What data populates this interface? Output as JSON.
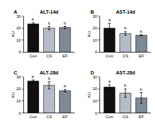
{
  "chart_data": [
    {
      "type": "bar",
      "panel": "A",
      "title": "ALT-14d",
      "y_label": "KU",
      "categories": [
        "Con",
        "CS",
        "EF"
      ],
      "values": [
        23.5,
        20,
        20.5
      ],
      "errors": [
        1,
        1.5,
        1
      ],
      "letters": [
        "a",
        "b",
        "b"
      ],
      "colors": [
        "#111111",
        "#b4bcc8",
        "#7f8a99"
      ],
      "ylim": [
        0,
        30
      ],
      "yticks": [
        0,
        10,
        20,
        30
      ],
      "grid": false
    },
    {
      "type": "bar",
      "panel": "B",
      "title": "AST-14d",
      "y_label": "KU",
      "categories": [
        "Con",
        "CS",
        "EF"
      ],
      "values": [
        20,
        15.5,
        14
      ],
      "errors": [
        4,
        1.5,
        0.5
      ],
      "letters": [
        "a",
        "b",
        "b"
      ],
      "colors": [
        "#111111",
        "#b4bcc8",
        "#7f8a99"
      ],
      "ylim": [
        0,
        30
      ],
      "yticks": [
        0,
        10,
        20,
        30
      ],
      "grid": false
    },
    {
      "type": "bar",
      "panel": "C",
      "title": "ALT-28d",
      "y_label": "KU",
      "categories": [
        "Con",
        "CS",
        "EF"
      ],
      "values": [
        26.5,
        23,
        18.5
      ],
      "errors": [
        1,
        3,
        1
      ],
      "letters": [
        "a",
        "b",
        "b"
      ],
      "colors": [
        "#111111",
        "#b4bcc8",
        "#7f8a99"
      ],
      "ylim": [
        0,
        30
      ],
      "yticks": [
        0,
        10,
        20,
        30
      ],
      "grid": false
    },
    {
      "type": "bar",
      "panel": "D",
      "title": "AST-28d",
      "y_label": "KU",
      "categories": [
        "Con",
        "CS",
        "EF"
      ],
      "values": [
        21.5,
        16.5,
        12.5
      ],
      "errors": [
        2,
        3.5,
        4.5
      ],
      "letters": [
        "a",
        "b",
        "b"
      ],
      "colors": [
        "#111111",
        "#b4bcc8",
        "#7f8a99"
      ],
      "ylim": [
        0,
        30
      ],
      "yticks": [
        0,
        10,
        20,
        30
      ],
      "grid": false
    }
  ]
}
